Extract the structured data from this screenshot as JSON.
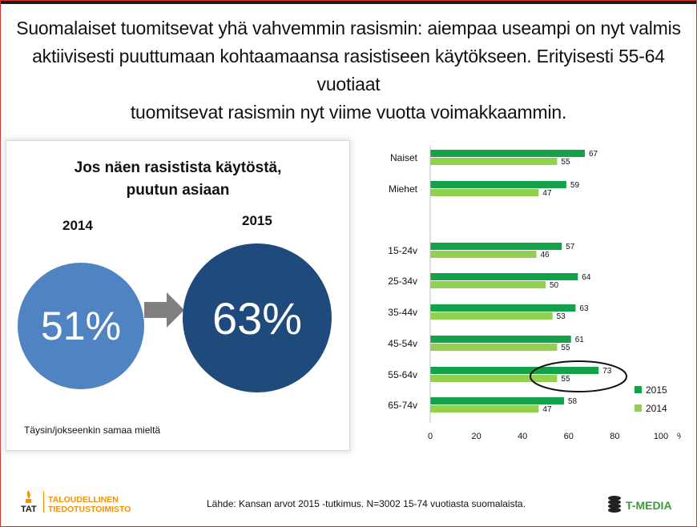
{
  "headline": {
    "line1": "Suomalaiset tuomitsevat yhä vahvemmin rasismin: aiempaa useampi on nyt valmis",
    "line2": "aktiivisesti puuttumaan kohtaamaansa rasistiseen käytökseen. Erityisesti 55-64 vuotiaat",
    "line3": "tuomitsevat rasismin nyt viime vuotta voimakkaammin."
  },
  "panel": {
    "title_line1": "Jos näen rasistista käytöstä,",
    "title_line2": "puutun asiaan",
    "year_left": "2014",
    "year_right": "2015",
    "value_left": "51%",
    "value_right": "63%",
    "color_left": "#5083c1",
    "color_right": "#1f4a7c",
    "footnote": "Täysin/jokseenkin samaa mieltä"
  },
  "chart_data": {
    "type": "bar",
    "orientation": "horizontal",
    "categories": [
      "Naiset",
      "Miehet",
      "15-24v",
      "25-34v",
      "35-44v",
      "45-54v",
      "55-64v",
      "65-74v"
    ],
    "series": [
      {
        "name": "2015",
        "color": "#13a24a",
        "values": [
          67,
          59,
          57,
          64,
          63,
          61,
          73,
          58
        ]
      },
      {
        "name": "2014",
        "color": "#92d050",
        "values": [
          55,
          47,
          46,
          50,
          53,
          55,
          55,
          47
        ]
      }
    ],
    "xlim": [
      0,
      100
    ],
    "xticks": [
      "0",
      "20",
      "40",
      "60",
      "80",
      "100"
    ],
    "xunit": "%",
    "grid": false,
    "legend_position": "bottom-right",
    "highlight_category": "55-64v"
  },
  "footer": {
    "source": "Lähde: Kansan arvot 2015 -tutkimus. N=3002 15-74 vuotiasta suomalaista.",
    "left_logo_abbr": "TAT",
    "left_logo_line1": "TALOUDELLINEN",
    "left_logo_line2": "TIEDOTUSTOIMISTO",
    "right_logo": "T-MEDIA"
  }
}
